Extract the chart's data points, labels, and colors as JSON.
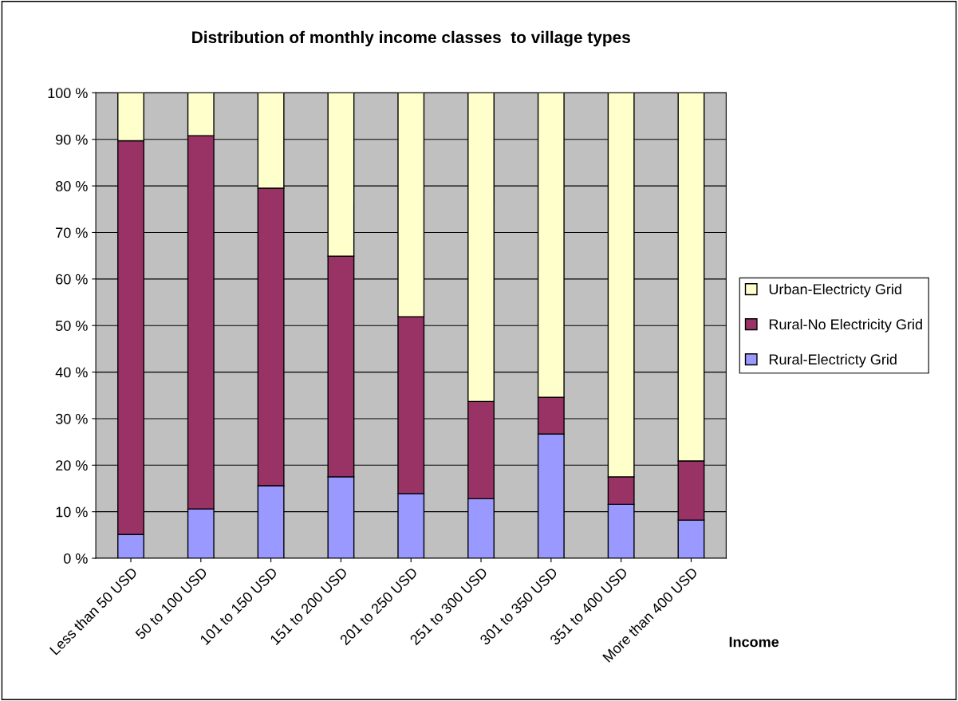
{
  "chart_data": {
    "type": "bar",
    "stacked": true,
    "title": "Distribution of monthly income classes  to village types",
    "xlabel": "Income",
    "categories": [
      "Less than 50 USD",
      "50 to 100 USD",
      "101 to 150 USD",
      "151 to 200 USD",
      "201 to 250 USD",
      "251 to 300 USD",
      "301 to 350 USD",
      "351 to 400 USD",
      "More than 400 USD"
    ],
    "series": [
      {
        "name": "Rural-Electricty Grid",
        "color": "#9999ff",
        "values": [
          5.1,
          10.6,
          15.6,
          17.5,
          13.9,
          12.8,
          26.7,
          11.6,
          8.2
        ]
      },
      {
        "name": "Rural-No Electricity Grid",
        "color": "#993366",
        "values": [
          84.6,
          80.2,
          63.9,
          47.4,
          38.0,
          20.9,
          7.9,
          5.9,
          12.7
        ]
      },
      {
        "name": "Urban-Electricty Grid",
        "color": "#ffffcc",
        "values": [
          10.3,
          9.2,
          20.5,
          35.1,
          48.1,
          66.3,
          65.4,
          82.5,
          79.1
        ]
      }
    ],
    "ylim": [
      0,
      100
    ],
    "yticks": [
      {
        "value": 0,
        "label": "0 %"
      },
      {
        "value": 10,
        "label": "10 %"
      },
      {
        "value": 20,
        "label": "20 %"
      },
      {
        "value": 30,
        "label": "30 %"
      },
      {
        "value": 40,
        "label": "40 %"
      },
      {
        "value": 50,
        "label": "50 %"
      },
      {
        "value": 60,
        "label": "60 %"
      },
      {
        "value": 70,
        "label": "70 %"
      },
      {
        "value": 80,
        "label": "80 %"
      },
      {
        "value": 90,
        "label": "90 %"
      },
      {
        "value": 100,
        "label": "100 %"
      }
    ],
    "grid": "y",
    "legend": "right"
  }
}
